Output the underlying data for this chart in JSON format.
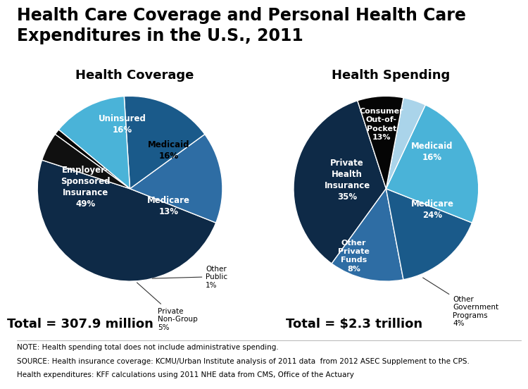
{
  "title": "Health Care Coverage and Personal Health Care\nExpenditures in the U.S., 2011",
  "title_fontsize": 17,
  "left_subtitle": "Health Coverage",
  "right_subtitle": "Health Spending",
  "subtitle_fontsize": 13,
  "coverage_values": [
    49,
    16,
    16,
    13,
    1,
    5
  ],
  "coverage_colors": [
    "#0e2a47",
    "#2e6da4",
    "#1a5a8a",
    "#4ab3d8",
    "#050505",
    "#101010"
  ],
  "coverage_startangle": 162,
  "spending_values": [
    35,
    13,
    16,
    24,
    4,
    8
  ],
  "spending_colors": [
    "#0e2a47",
    "#2e6da4",
    "#1a5a8a",
    "#4ab3d8",
    "#aad4ea",
    "#050505"
  ],
  "spending_startangle": 108,
  "left_total": "Total = 307.9 million",
  "right_total": "Total = $2.3 trillion",
  "total_fontsize": 13,
  "note_line1": "NOTE: Health spending total does not include administrative spending.",
  "note_line2": "SOURCE: Health insurance coverage: KCMU/Urban Institute analysis of 2011 data  from 2012 ASEC Supplement to the CPS.",
  "note_line3": "Health expenditures: KFF calculations using 2011 NHE data from CMS, Office of the Actuary",
  "note_fontsize": 7.5,
  "background_color": "#ffffff"
}
